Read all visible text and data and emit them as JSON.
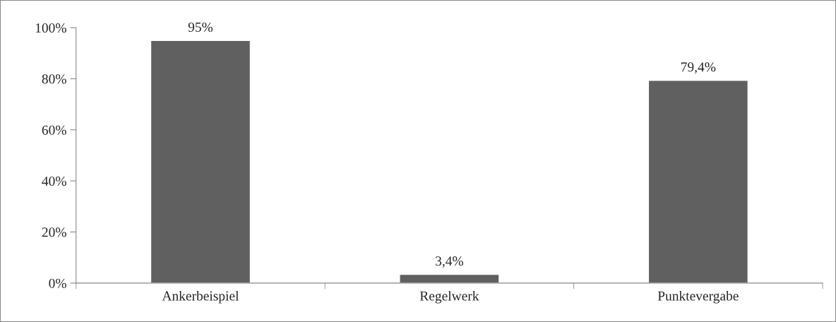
{
  "chart_data": {
    "type": "bar",
    "categories": [
      "Ankerbeispiel",
      "Regelwerk",
      "Punktevergabe"
    ],
    "values": [
      95,
      3.4,
      79.4
    ],
    "value_labels": [
      "95%",
      "3,4%",
      "79,4%"
    ],
    "color": "#606060",
    "ylim": [
      0,
      100
    ],
    "yticks": [
      {
        "value": 0,
        "label": "0%"
      },
      {
        "value": 20,
        "label": "20%"
      },
      {
        "value": 40,
        "label": "40%"
      },
      {
        "value": 60,
        "label": "60%"
      },
      {
        "value": 80,
        "label": "80%"
      },
      {
        "value": 100,
        "label": "100%"
      }
    ],
    "grid": false
  }
}
